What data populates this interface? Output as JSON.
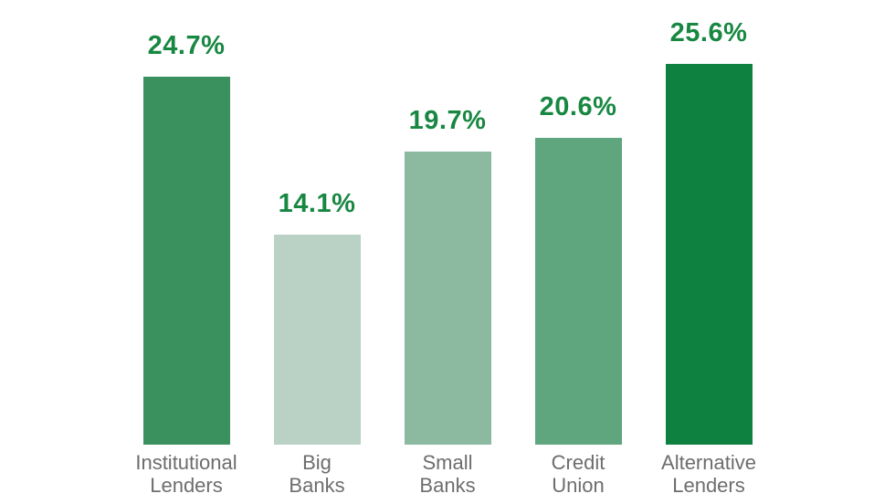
{
  "page": {
    "background": "#ffffff"
  },
  "chart_data": {
    "type": "bar",
    "title": "",
    "xlabel": "",
    "ylabel": "",
    "categories": [
      "Institutional Lenders",
      "Big Banks",
      "Small Banks",
      "Credit Union",
      "Alternative Lenders"
    ],
    "values": [
      24.7,
      14.1,
      19.7,
      20.6,
      25.6
    ],
    "value_labels": [
      "24.7%",
      "14.1%",
      "19.7%",
      "20.6%",
      "25.6%"
    ],
    "category_label_lines": [
      [
        "Institutional",
        "Lenders"
      ],
      [
        "Big",
        "Banks"
      ],
      [
        "Small",
        "Banks"
      ],
      [
        "Credit",
        "Union"
      ],
      [
        "Alternative",
        "Lenders"
      ]
    ],
    "bar_colors": [
      "#3a915e",
      "#bad1c5",
      "#8cbaa1",
      "#5fa67e",
      "#0e8040"
    ],
    "value_label_color": "#188742",
    "category_label_color": "#6d6d6d",
    "ylim": [
      0,
      26
    ],
    "grid": false,
    "legend": false,
    "axes_visible": false,
    "background": "#ffffff"
  }
}
